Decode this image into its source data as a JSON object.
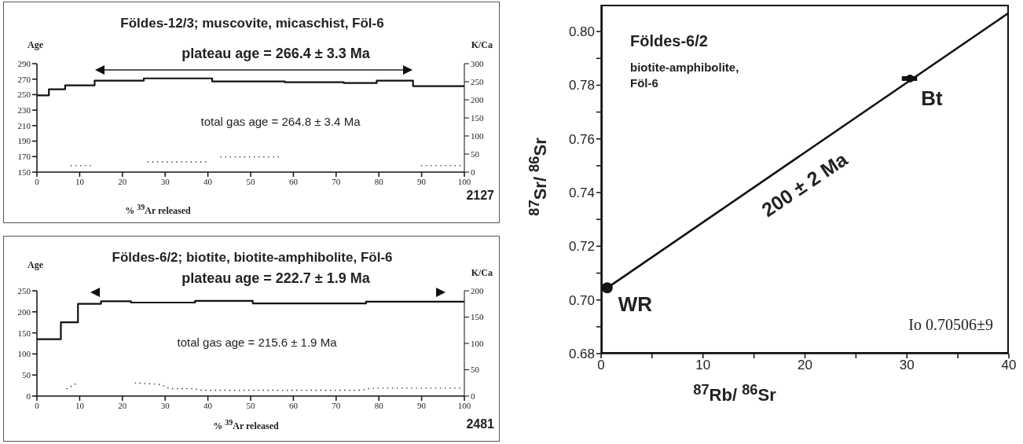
{
  "chart_data": [
    {
      "type": "step",
      "title": "Földes-12/3; muscovite, micaschist, Föl-6",
      "xlabel": "% $^{39}$Ar released",
      "ylabel": "Age",
      "y2label": "K/Ca",
      "annotations": [
        "plateau age = 266.4 ± 3.3 Ma",
        "total gas age = 264.8 ± 3.4 Ma",
        "2127"
      ],
      "series": [
        {
          "color": "#111111",
          "x": [
            0,
            2.8,
            6.6,
            13.5,
            25,
            41,
            58,
            71.8,
            79.5,
            88,
            100
          ],
          "values": [
            249,
            257,
            262,
            268,
            271,
            267,
            266,
            265,
            268,
            261,
            261
          ]
        },
        {
          "type": "line",
          "axis": "y2",
          "line_style": "dotted",
          "color": "#333333",
          "x": [
            8,
            13,
            20,
            26,
            40,
            41.5,
            43,
            57,
            75,
            90,
            100
          ],
          "values": [
            18,
            18,
            null,
            28,
            28,
            null,
            42,
            42,
            null,
            18,
            18
          ]
        }
      ],
      "xlim": [
        0,
        100
      ],
      "xticks": [
        0,
        10,
        20,
        30,
        40,
        50,
        60,
        70,
        80,
        90,
        100
      ],
      "ylim": [
        150,
        290
      ],
      "yticks": [
        150,
        170,
        190,
        210,
        230,
        250,
        270,
        290
      ],
      "y2lim": [
        0,
        300
      ],
      "y2ticks": [
        0,
        50,
        100,
        150,
        200,
        250,
        300
      ]
    },
    {
      "type": "step",
      "title": "Földes-6/2; biotite, biotite-amphibolite, Föl-6",
      "xlabel": "% $^{39}$Ar released",
      "ylabel": "Age",
      "y2label": "K/Ca",
      "annotations": [
        "plateau age = 222.7 ± 1.9 Ma",
        "total gas age = 215.6 ± 1.9 Ma",
        "2481"
      ],
      "series": [
        {
          "color": "#111111",
          "x": [
            0,
            5.6,
            9.6,
            15,
            22,
            37,
            50.5,
            77,
            100
          ],
          "values": [
            135,
            175,
            219,
            225,
            222,
            226,
            220,
            224,
            224
          ]
        },
        {
          "type": "line",
          "axis": "y2",
          "line_style": "dotted",
          "color": "#333333",
          "x": [
            7,
            9.5,
            12,
            23,
            29,
            31,
            37,
            38,
            76,
            78,
            100
          ],
          "values": [
            14,
            25,
            null,
            25,
            22,
            14,
            14,
            11,
            11,
            15,
            15
          ]
        }
      ],
      "xlim": [
        0,
        100
      ],
      "xticks": [
        0,
        10,
        20,
        30,
        40,
        50,
        60,
        70,
        80,
        90,
        100
      ],
      "ylim": [
        0,
        250
      ],
      "yticks": [
        0,
        50,
        100,
        150,
        200,
        250
      ],
      "y2lim": [
        0,
        200
      ],
      "y2ticks": [
        0,
        50,
        100,
        150,
        200
      ]
    },
    {
      "type": "scatter",
      "title": "Földes-6/2",
      "subtitle": "biotite-amphibolite, Föl-6",
      "xlabel": "$^{87}$Rb/ $^{86}$Sr",
      "ylabel": "$^{87}$Sr/ $^{86}$Sr",
      "marker": "circle",
      "annotations": [
        {
          "text": "WR",
          "x": 0.6,
          "y": 0.7045
        },
        {
          "text": "Bt",
          "x": 30.3,
          "y": 0.7825
        },
        "200 ± 2 Ma",
        "Io 0.70506±9"
      ],
      "series": [
        {
          "color": "#111111",
          "x": [
            0.6,
            30.3
          ],
          "values": [
            0.7045,
            0.7825
          ],
          "xerrors": [
            null,
            [
              29.5,
              31
            ]
          ]
        },
        {
          "type": "line",
          "marker": "none",
          "color": "#111111",
          "x": [
            0.6,
            40
          ],
          "values": [
            0.7045,
            0.807
          ]
        }
      ],
      "xlim": [
        0,
        40
      ],
      "xticks": [
        0,
        {
          "value": 5,
          "label": null
        },
        10,
        {
          "value": 15,
          "label": null
        },
        20,
        {
          "value": 25,
          "label": null
        },
        30,
        {
          "value": 35,
          "label": null
        },
        40
      ],
      "ylim": [
        0.68,
        0.81
      ],
      "yticks": [
        {
          "value": 0.68,
          "label": "0.68"
        },
        {
          "value": 0.69,
          "label": null
        },
        {
          "value": 0.7,
          "label": "0.70"
        },
        {
          "value": 0.71,
          "label": null
        },
        {
          "value": 0.72,
          "label": "0.72"
        },
        {
          "value": 0.73,
          "label": null
        },
        {
          "value": 0.74,
          "label": "0.74"
        },
        {
          "value": 0.75,
          "label": null
        },
        {
          "value": 0.76,
          "label": "0.76"
        },
        {
          "value": 0.77,
          "label": null
        },
        {
          "value": 0.78,
          "label": "0.78"
        },
        {
          "value": 0.79,
          "label": null
        },
        {
          "value": 0.8,
          "label": "0.80"
        }
      ]
    }
  ]
}
